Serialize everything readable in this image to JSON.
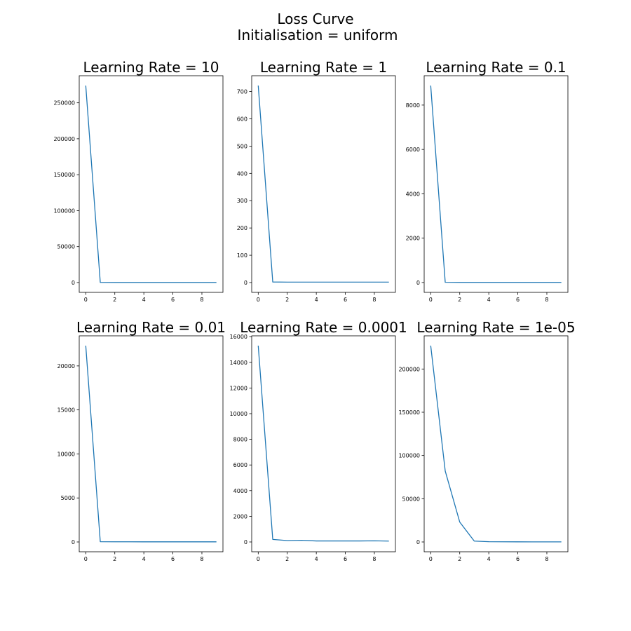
{
  "figure": {
    "title": "Loss Curve",
    "subtitle": "Initialisation = uniform"
  },
  "colors": {
    "line": "#1f77b4",
    "axes": "#000000",
    "background": "#ffffff"
  },
  "chart_data": [
    {
      "type": "line",
      "title": "Learning Rate = 10",
      "x": [
        0,
        1,
        2,
        3,
        4,
        5,
        6,
        7,
        8,
        9
      ],
      "values": [
        274000,
        100,
        20,
        10,
        10,
        5,
        5,
        5,
        5,
        5
      ],
      "xlim": [
        -0.45,
        9.45
      ],
      "ylim": [
        -13700,
        287700
      ],
      "xticks": [
        0,
        2,
        4,
        6,
        8
      ],
      "yticks": [
        0,
        50000,
        100000,
        150000,
        200000,
        250000
      ],
      "grid": false
    },
    {
      "type": "line",
      "title": "Learning Rate = 1",
      "x": [
        0,
        1,
        2,
        3,
        4,
        5,
        6,
        7,
        8,
        9
      ],
      "values": [
        722,
        2,
        1.5,
        1.5,
        1.5,
        1.5,
        1.5,
        1.5,
        1.5,
        1.5
      ],
      "xlim": [
        -0.45,
        9.45
      ],
      "ylim": [
        -36,
        758
      ],
      "xticks": [
        0,
        2,
        4,
        6,
        8
      ],
      "yticks": [
        0,
        100,
        200,
        300,
        400,
        500,
        600,
        700
      ],
      "grid": false
    },
    {
      "type": "line",
      "title": "Learning Rate = 0.1",
      "x": [
        0,
        1,
        2,
        3,
        4,
        5,
        6,
        7,
        8,
        9
      ],
      "values": [
        8880,
        10,
        5,
        5,
        5,
        5,
        5,
        5,
        5,
        5
      ],
      "xlim": [
        -0.45,
        9.45
      ],
      "ylim": [
        -444,
        9324
      ],
      "xticks": [
        0,
        2,
        4,
        6,
        8
      ],
      "yticks": [
        0,
        2000,
        4000,
        6000,
        8000
      ],
      "grid": false
    },
    {
      "type": "line",
      "title": "Learning Rate = 0.01",
      "x": [
        0,
        1,
        2,
        3,
        4,
        5,
        6,
        7,
        8,
        9
      ],
      "values": [
        22300,
        30,
        20,
        20,
        15,
        15,
        15,
        15,
        15,
        15
      ],
      "xlim": [
        -0.45,
        9.45
      ],
      "ylim": [
        -1115,
        23415
      ],
      "xticks": [
        0,
        2,
        4,
        6,
        8
      ],
      "yticks": [
        0,
        5000,
        10000,
        15000,
        20000
      ],
      "grid": false
    },
    {
      "type": "line",
      "title": "Learning Rate = 0.0001",
      "x": [
        0,
        1,
        2,
        3,
        4,
        5,
        6,
        7,
        8,
        9
      ],
      "values": [
        15300,
        200,
        110,
        130,
        80,
        80,
        80,
        80,
        90,
        70
      ],
      "xlim": [
        -0.45,
        9.45
      ],
      "ylim": [
        -765,
        16065
      ],
      "xticks": [
        0,
        2,
        4,
        6,
        8
      ],
      "yticks": [
        0,
        2000,
        4000,
        6000,
        8000,
        10000,
        12000,
        14000,
        16000
      ],
      "grid": false
    },
    {
      "type": "line",
      "title": "Learning Rate = 1e-05",
      "x": [
        0,
        1,
        2,
        3,
        4,
        5,
        6,
        7,
        8,
        9
      ],
      "values": [
        227000,
        82000,
        23000,
        1000,
        300,
        200,
        150,
        100,
        100,
        100
      ],
      "xlim": [
        -0.45,
        9.45
      ],
      "ylim": [
        -11350,
        238350
      ],
      "xticks": [
        0,
        2,
        4,
        6,
        8
      ],
      "yticks": [
        0,
        50000,
        100000,
        150000,
        200000
      ],
      "grid": false
    }
  ]
}
